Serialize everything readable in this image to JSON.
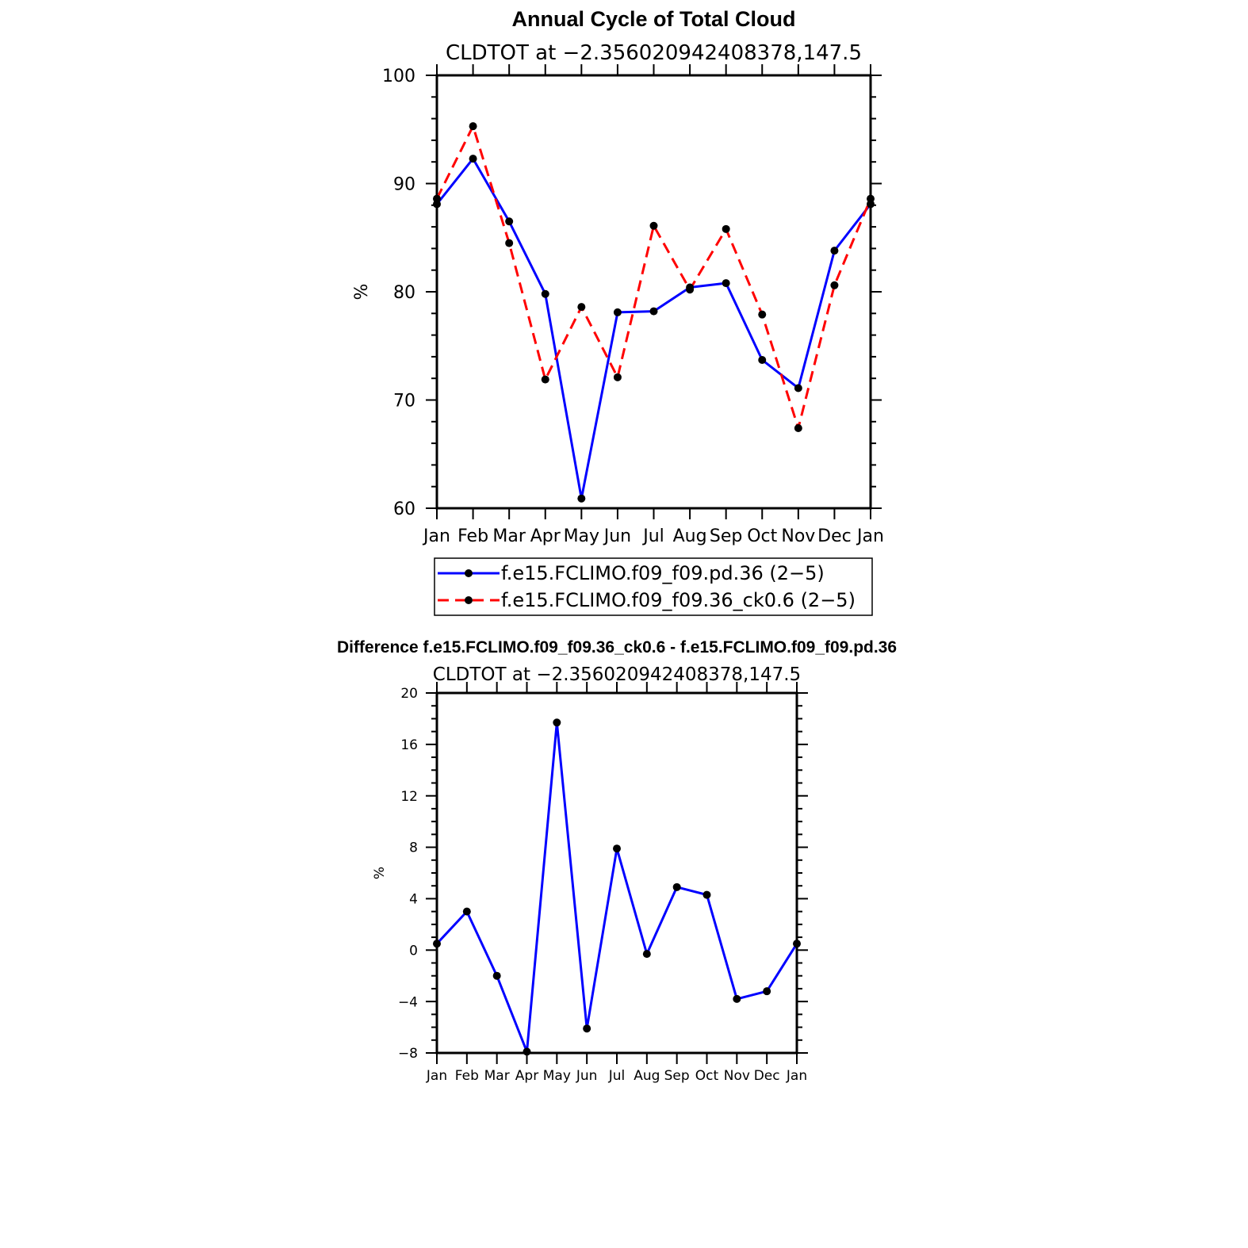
{
  "chart_data": [
    {
      "type": "line",
      "title": "Annual Cycle of Total Cloud",
      "subtitle": "CLDTOT at −2.356020942408378,147.5",
      "ylabel": "%",
      "xlabel": "",
      "categories": [
        "Jan",
        "Feb",
        "Mar",
        "Apr",
        "May",
        "Jun",
        "Jul",
        "Aug",
        "Sep",
        "Oct",
        "Nov",
        "Dec",
        "Jan"
      ],
      "ylim": [
        60,
        100
      ],
      "yticks": [
        "60",
        "70",
        "80",
        "90",
        "100"
      ],
      "grid": false,
      "legend_position": "below",
      "series": [
        {
          "name": "f.e15.FCLIMO.f09_f09.pd.36 (2−5)",
          "color": "#0000ff",
          "style": "solid",
          "values": [
            88.1,
            92.3,
            86.5,
            79.8,
            60.9,
            78.1,
            78.2,
            80.4,
            80.8,
            73.7,
            71.1,
            83.8,
            88.1
          ]
        },
        {
          "name": "f.e15.FCLIMO.f09_f09.36_ck0.6 (2−5)",
          "color": "#ff0000",
          "style": "dashed",
          "values": [
            88.6,
            95.3,
            84.5,
            71.9,
            78.6,
            72.1,
            86.1,
            80.2,
            85.8,
            77.9,
            67.4,
            80.6,
            88.6
          ]
        }
      ]
    },
    {
      "type": "line",
      "title": "Difference f.e15.FCLIMO.f09_f09.36_ck0.6 - f.e15.FCLIMO.f09_f09.pd.36",
      "subtitle": "CLDTOT at −2.356020942408378,147.5",
      "ylabel": "%",
      "xlabel": "",
      "categories": [
        "Jan",
        "Feb",
        "Mar",
        "Apr",
        "May",
        "Jun",
        "Jul",
        "Aug",
        "Sep",
        "Oct",
        "Nov",
        "Dec",
        "Jan"
      ],
      "ylim": [
        -8,
        20
      ],
      "yticks": [
        "−8",
        "−4",
        "0",
        "4",
        "8",
        "12",
        "16",
        "20"
      ],
      "grid": false,
      "series": [
        {
          "color": "#0000ff",
          "style": "solid",
          "values": [
            0.5,
            3.0,
            -2.0,
            -7.9,
            17.7,
            -6.1,
            7.9,
            -0.3,
            4.9,
            4.3,
            -3.8,
            -3.2,
            0.5
          ]
        }
      ]
    }
  ]
}
